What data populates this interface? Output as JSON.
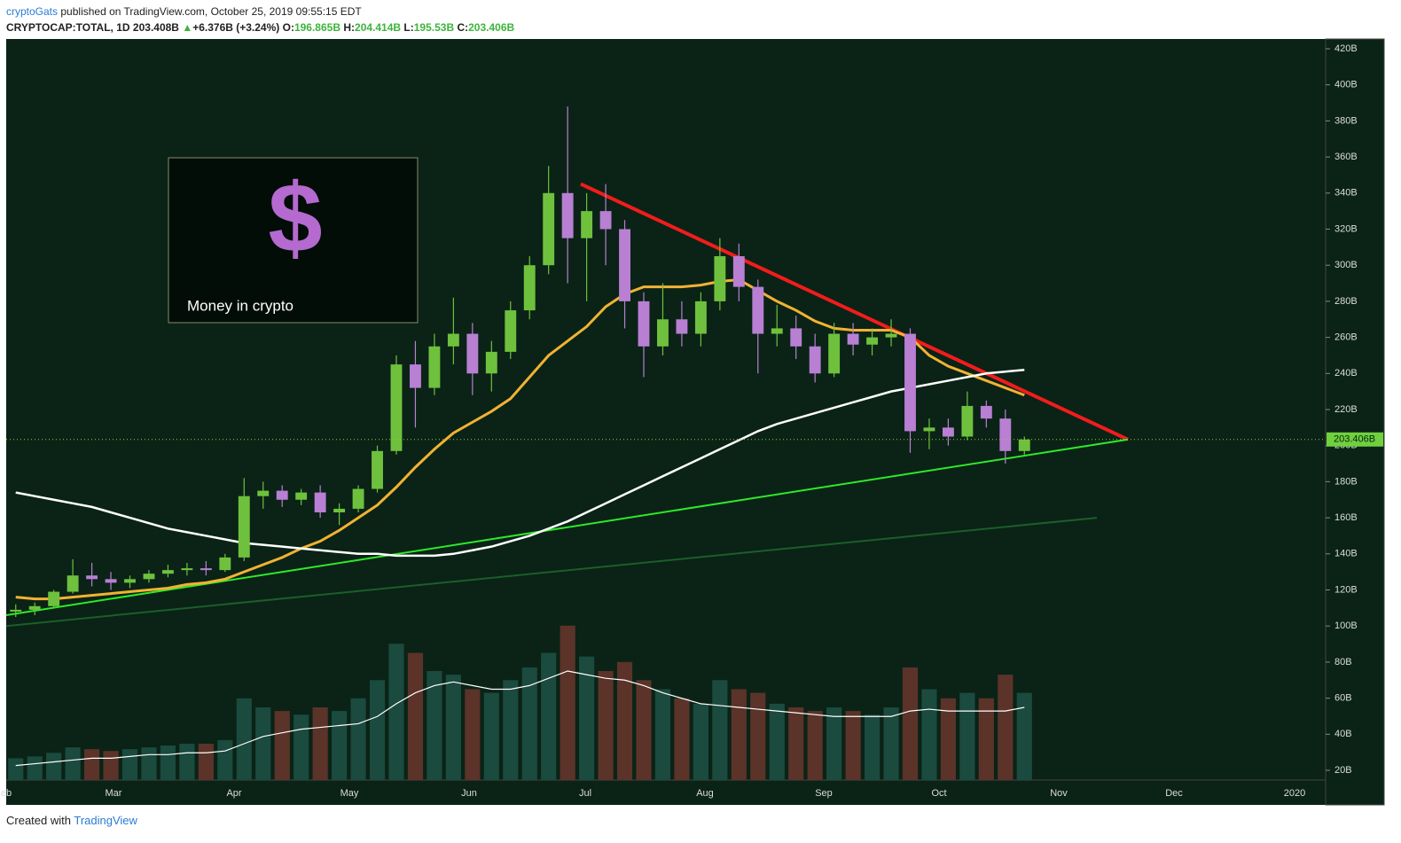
{
  "header": {
    "author": "cryptoGats",
    "published": "published on TradingView.com, October 25, 2019 09:55:15 EDT",
    "symbol": "CRYPTOCAP:TOTAL, 1D",
    "price": "203.408B",
    "arrow": "▲",
    "change": "+6.376B (+3.24%)",
    "o_label": "O:",
    "o": "196.865B",
    "h_label": "H:",
    "h": "204.414B",
    "l_label": "L:",
    "l": "195.53B",
    "c_label": "C:",
    "c": "203.406B"
  },
  "inset": {
    "icon": "$",
    "caption": "Money in crypto"
  },
  "footer": {
    "created": "Created with",
    "brand": "TradingView"
  },
  "chart_data": {
    "type": "candlestick",
    "up_color": "#6fc13d",
    "down_color": "#b87fd3",
    "vol_up_color": "#1b4a3e",
    "vol_down_color": "#5b3329",
    "ylim": [
      14.6,
      425.4
    ],
    "yticks": [
      {
        "value": 20,
        "label": "20B"
      },
      {
        "value": 40,
        "label": "40B"
      },
      {
        "value": 60,
        "label": "60B"
      },
      {
        "value": 80,
        "label": "80B"
      },
      {
        "value": 100,
        "label": "100B"
      },
      {
        "value": 120,
        "label": "120B"
      },
      {
        "value": 140,
        "label": "140B"
      },
      {
        "value": 160,
        "label": "160B"
      },
      {
        "value": 180,
        "label": "180B"
      },
      {
        "value": 200,
        "label": "200B"
      },
      {
        "value": 220,
        "label": "220B"
      },
      {
        "value": 240,
        "label": "240B"
      },
      {
        "value": 260,
        "label": "260B"
      },
      {
        "value": 280,
        "label": "280B"
      },
      {
        "value": 300,
        "label": "300B"
      },
      {
        "value": 320,
        "label": "320B"
      },
      {
        "value": 340,
        "label": "340B"
      },
      {
        "value": 360,
        "label": "360B"
      },
      {
        "value": 380,
        "label": "380B"
      },
      {
        "value": 400,
        "label": "400B"
      },
      {
        "value": 420,
        "label": "420B"
      }
    ],
    "x_labels": [
      "eb",
      "Mar",
      "Apr",
      "May",
      "Jun",
      "Jul",
      "Aug",
      "Sep",
      "Oct",
      "Nov",
      "Dec",
      "2020"
    ],
    "last_price": {
      "value": 203.406,
      "label": "203.406B"
    },
    "candles": [
      [
        108,
        112,
        105,
        109
      ],
      [
        109,
        113,
        106,
        111
      ],
      [
        111,
        120,
        110,
        119
      ],
      [
        119,
        137,
        118,
        128
      ],
      [
        128,
        135,
        122,
        126
      ],
      [
        126,
        130,
        120,
        124
      ],
      [
        124,
        128,
        121,
        126
      ],
      [
        126,
        131,
        124,
        129
      ],
      [
        129,
        134,
        127,
        131
      ],
      [
        131,
        135,
        128,
        132
      ],
      [
        132,
        136,
        128,
        131
      ],
      [
        131,
        140,
        130,
        138
      ],
      [
        138,
        182,
        136,
        172
      ],
      [
        172,
        180,
        165,
        175
      ],
      [
        175,
        178,
        166,
        170
      ],
      [
        170,
        176,
        167,
        174
      ],
      [
        174,
        178,
        160,
        163
      ],
      [
        163,
        168,
        156,
        165
      ],
      [
        165,
        178,
        163,
        176
      ],
      [
        176,
        200,
        174,
        197
      ],
      [
        197,
        250,
        195,
        245
      ],
      [
        245,
        258,
        210,
        232
      ],
      [
        232,
        262,
        228,
        255
      ],
      [
        255,
        282,
        245,
        262
      ],
      [
        262,
        268,
        228,
        240
      ],
      [
        240,
        258,
        230,
        252
      ],
      [
        252,
        280,
        248,
        275
      ],
      [
        275,
        305,
        270,
        300
      ],
      [
        300,
        355,
        295,
        340
      ],
      [
        340,
        388,
        290,
        315
      ],
      [
        315,
        340,
        280,
        330
      ],
      [
        330,
        345,
        300,
        320
      ],
      [
        320,
        325,
        265,
        280
      ],
      [
        280,
        285,
        238,
        255
      ],
      [
        255,
        290,
        250,
        270
      ],
      [
        270,
        280,
        255,
        262
      ],
      [
        262,
        285,
        255,
        280
      ],
      [
        280,
        315,
        275,
        305
      ],
      [
        305,
        312,
        280,
        288
      ],
      [
        288,
        292,
        240,
        262
      ],
      [
        262,
        278,
        255,
        265
      ],
      [
        265,
        272,
        248,
        255
      ],
      [
        255,
        262,
        235,
        240
      ],
      [
        240,
        268,
        238,
        262
      ],
      [
        262,
        268,
        250,
        256
      ],
      [
        256,
        265,
        250,
        260
      ],
      [
        260,
        270,
        255,
        262
      ],
      [
        262,
        265,
        196,
        208
      ],
      [
        208,
        215,
        198,
        210
      ],
      [
        210,
        215,
        200,
        205
      ],
      [
        205,
        230,
        203,
        222
      ],
      [
        222,
        225,
        210,
        215
      ],
      [
        215,
        220,
        190,
        197
      ],
      [
        197,
        205,
        195,
        203.406
      ]
    ],
    "volume": [
      12,
      13,
      15,
      18,
      17,
      16,
      17,
      18,
      19,
      20,
      20,
      22,
      45,
      40,
      38,
      36,
      40,
      38,
      45,
      55,
      75,
      70,
      60,
      58,
      50,
      48,
      55,
      62,
      70,
      85,
      68,
      60,
      65,
      55,
      50,
      45,
      42,
      55,
      50,
      48,
      42,
      40,
      38,
      40,
      38,
      36,
      40,
      62,
      50,
      45,
      48,
      45,
      58,
      48
    ],
    "ma_series": [
      {
        "color": "#f2b233",
        "width": 3,
        "values": [
          116,
          115,
          115,
          116,
          117,
          118,
          119,
          120,
          121,
          123,
          124,
          126,
          130,
          134,
          138,
          143,
          147,
          153,
          160,
          167,
          177,
          188,
          198,
          207,
          213,
          219,
          226,
          238,
          250,
          258,
          266,
          277,
          284,
          288,
          288,
          288,
          289,
          291,
          292,
          286,
          280,
          275,
          269,
          265,
          264,
          264,
          264,
          260,
          250,
          244,
          240,
          236,
          232,
          228
        ]
      },
      {
        "color": "#ffffff",
        "width": 2.5,
        "values": [
          174,
          172,
          170,
          168,
          166,
          163,
          160,
          157,
          154,
          152,
          150,
          148,
          146,
          145,
          144,
          143,
          142,
          141,
          140,
          140,
          139,
          139,
          139,
          140,
          142,
          144,
          147,
          150,
          154,
          158,
          163,
          168,
          173,
          178,
          183,
          188,
          193,
          198,
          203,
          208,
          212,
          215,
          218,
          221,
          224,
          227,
          230,
          232,
          234,
          236,
          238,
          240,
          241,
          242
        ]
      }
    ],
    "volume_ma": [
      8,
      9,
      10,
      11,
      12,
      12,
      13,
      14,
      14,
      15,
      15,
      16,
      20,
      24,
      26,
      28,
      29,
      30,
      31,
      35,
      42,
      48,
      52,
      54,
      52,
      50,
      50,
      52,
      56,
      60,
      58,
      56,
      55,
      52,
      48,
      45,
      42,
      41,
      40,
      39,
      38,
      37,
      36,
      35,
      35,
      35,
      35,
      38,
      39,
      38,
      38,
      38,
      38,
      40
    ],
    "trendlines": [
      {
        "color": "#f21c1c",
        "width": 4,
        "values": [
          345,
          203.406
        ]
      },
      {
        "color": "#2ee82a",
        "width": 2,
        "values": [
          106,
          203.406
        ]
      },
      {
        "color": "#1b5e2a",
        "width": 2,
        "values": [
          100,
          160
        ]
      }
    ]
  }
}
